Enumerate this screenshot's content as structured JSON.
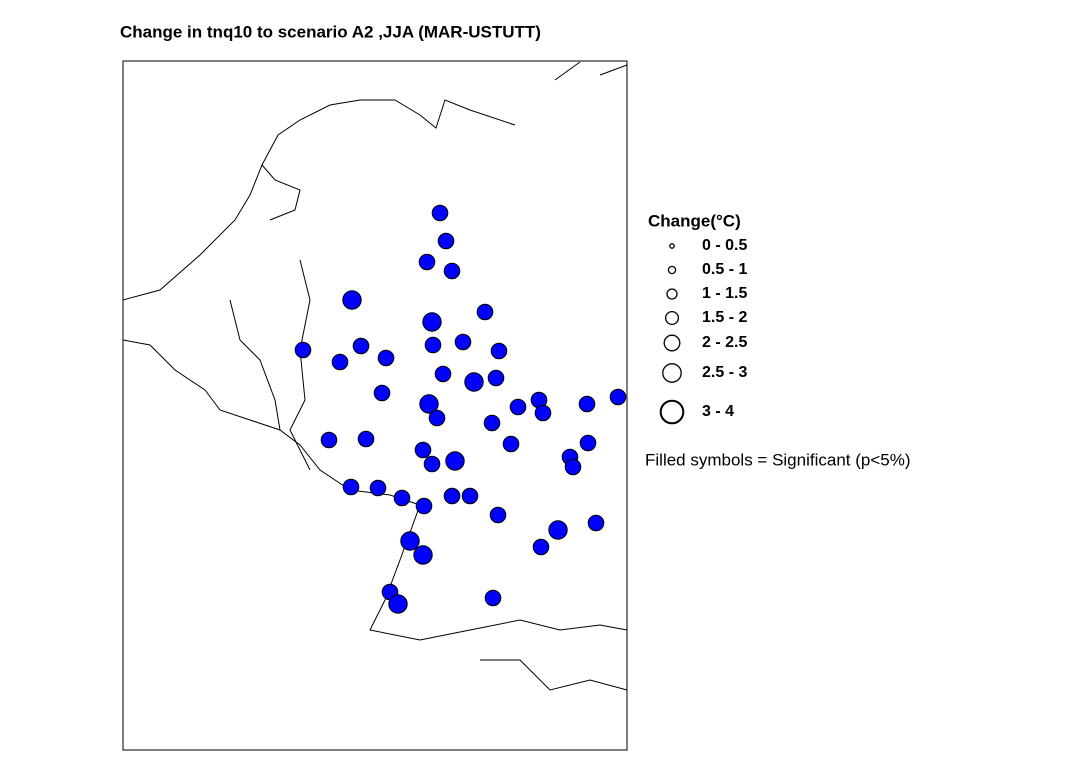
{
  "title": "Change in tnq10 to scenario A2 ,JJA (MAR-USTUTT)",
  "legend": {
    "title": "Change(°C)",
    "classes": [
      {
        "label": "0 - 0.5",
        "min": 0,
        "max": 0.5
      },
      {
        "label": "0.5 - 1",
        "min": 0.5,
        "max": 1
      },
      {
        "label": "1 - 1.5",
        "min": 1,
        "max": 1.5
      },
      {
        "label": "1.5 - 2",
        "min": 1.5,
        "max": 2
      },
      {
        "label": "2 - 2.5",
        "min": 2,
        "max": 2.5
      },
      {
        "label": "2.5 - 3",
        "min": 2.5,
        "max": 3
      },
      {
        "label": "3 - 4",
        "min": 3,
        "max": 4
      }
    ],
    "note": "Filled symbols = Significant (p<5%)"
  },
  "stations": {
    "color": "#0000ff",
    "values": [
      2.25,
      2.25,
      2.25,
      2.25,
      2.75,
      2.75,
      2.25,
      2.25,
      2.25,
      2.25,
      2.25,
      2.25,
      2.25,
      2.25,
      2.25,
      2.75,
      2.25,
      2.25,
      2.75,
      2.25,
      2.25,
      2.25,
      2.25,
      2.25,
      2.25,
      2.25,
      2.25,
      2.25,
      2.25,
      2.25,
      2.25,
      2.75,
      2.25,
      2.25,
      2.25,
      2.25,
      2.25,
      2.25,
      2.25,
      2.25,
      2.25,
      2.25,
      2.75,
      2.25,
      2.25,
      2.75,
      2.75,
      2.25,
      2.75,
      2.25
    ]
  }
}
